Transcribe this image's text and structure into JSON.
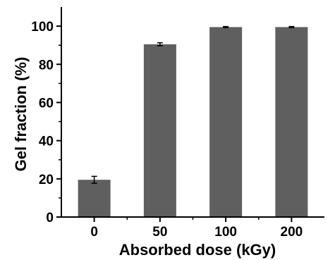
{
  "chart_data": {
    "type": "bar",
    "title": "",
    "xlabel": "Absorbed dose (kGy)",
    "ylabel": "Gel fraction (%)",
    "categories": [
      "0",
      "50",
      "100",
      "200"
    ],
    "series": [
      {
        "values": [
          19.5,
          90.5,
          99.5,
          99.5
        ],
        "errors": [
          1.8,
          0.8,
          0.3,
          0.3
        ]
      }
    ],
    "ylim": [
      0,
      110
    ],
    "yticks": [
      0,
      20,
      40,
      60,
      80,
      100
    ],
    "grid": false,
    "legend": "none",
    "bar_color": "#5f5f5f",
    "axis_color": "#000000"
  }
}
